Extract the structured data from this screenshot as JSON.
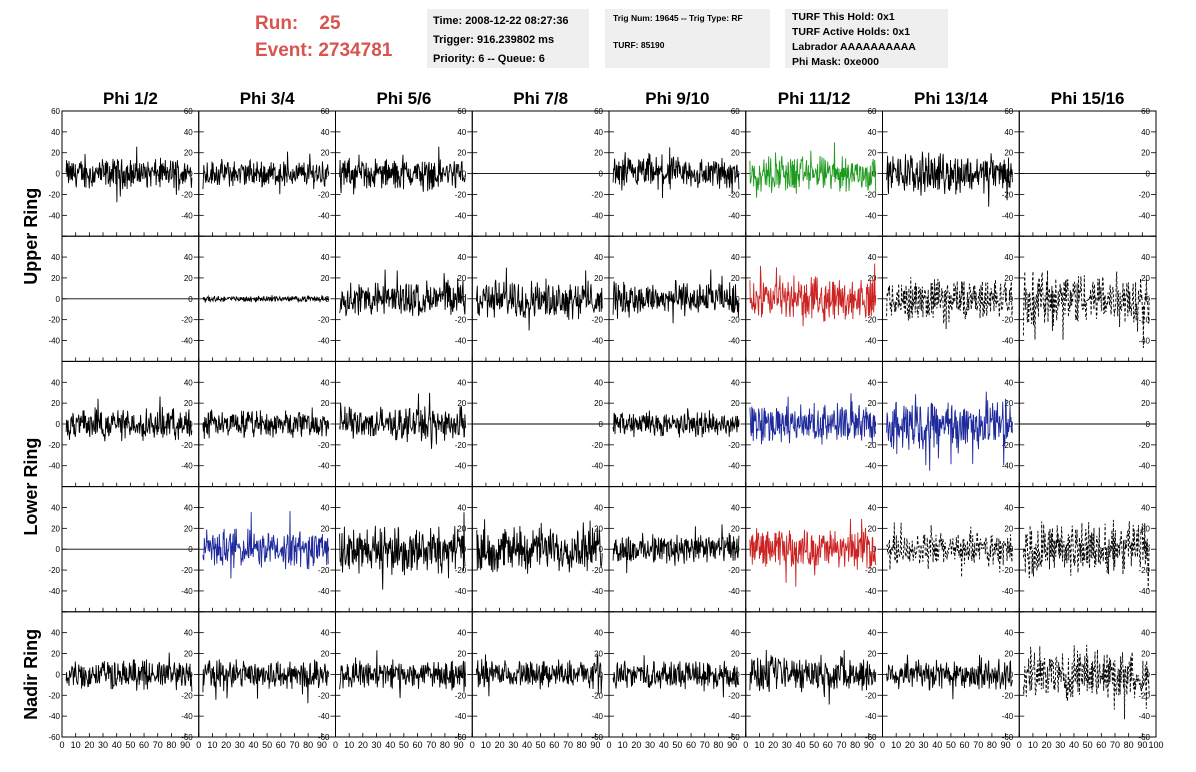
{
  "header": {
    "run_label": "Run:",
    "run_value": "25",
    "event_label": "Event:",
    "event_value": "2734781"
  },
  "info_time": {
    "line1": "Time: 2008-12-22 08:27:36",
    "line2": "Trigger: 916.239802 ms",
    "line3": "Priority: 6 -- Queue: 6"
  },
  "info_trig": {
    "line1": "Trig Num: 19645 -- Trig Type: RF",
    "line2": "TURF: 85190"
  },
  "info_turf": {
    "line1": "TURF This Hold: 0x1",
    "line2": "TURF Active Holds: 0x1",
    "line3": "Labrador AAAAAAAAAA",
    "line4": "Phi Mask: 0xe000"
  },
  "chart_data": {
    "type": "line",
    "columns": [
      "Phi 1/2",
      "Phi 3/4",
      "Phi 5/6",
      "Phi 7/8",
      "Phi 9/10",
      "Phi 11/12",
      "Phi 13/14",
      "Phi 15/16"
    ],
    "row_groups": [
      {
        "label": "Upper Ring",
        "rows": [
          0,
          1
        ]
      },
      {
        "label": "Lower Ring",
        "rows": [
          2,
          3
        ]
      },
      {
        "label": "Nadir Ring",
        "rows": [
          4
        ]
      }
    ],
    "xlim": [
      0,
      100
    ],
    "ylim": [
      -60,
      60
    ],
    "x_ticks": [
      "0",
      "10",
      "20",
      "30",
      "40",
      "50",
      "60",
      "70",
      "80",
      "90",
      "100"
    ],
    "y_ticks": [
      "60",
      "40",
      "20",
      "0",
      "-20",
      "-40",
      "-60"
    ],
    "colors": {
      "normal": "#000000",
      "green": "#1e9a1e",
      "red": "#cc2222",
      "blue": "#1e2a9c"
    },
    "panels": [
      [
        {
          "amp": 11,
          "color": "normal"
        },
        {
          "amp": 10,
          "color": "normal"
        },
        {
          "amp": 11,
          "color": "normal"
        },
        {
          "amp": 0,
          "color": "normal"
        },
        {
          "amp": 12,
          "color": "normal"
        },
        {
          "amp": 13,
          "color": "green"
        },
        {
          "amp": 14,
          "color": "normal"
        },
        {
          "amp": 0,
          "color": "normal"
        }
      ],
      [
        {
          "amp": 0,
          "color": "normal"
        },
        {
          "amp": 2,
          "color": "normal"
        },
        {
          "amp": 13,
          "color": "normal"
        },
        {
          "amp": 14,
          "color": "normal"
        },
        {
          "amp": 12,
          "color": "normal"
        },
        {
          "amp": 15,
          "color": "red"
        },
        {
          "amp": 15,
          "color": "normal",
          "dashed": true
        },
        {
          "amp": 20,
          "color": "normal",
          "dashed": true
        }
      ],
      [
        {
          "amp": 11,
          "color": "normal"
        },
        {
          "amp": 10,
          "color": "normal"
        },
        {
          "amp": 12,
          "color": "normal"
        },
        {
          "amp": 0,
          "color": "normal"
        },
        {
          "amp": 9,
          "color": "normal"
        },
        {
          "amp": 14,
          "color": "blue"
        },
        {
          "amp": 18,
          "color": "blue"
        },
        {
          "amp": 0,
          "color": "normal"
        }
      ],
      [
        {
          "amp": 0,
          "color": "normal"
        },
        {
          "amp": 14,
          "color": "blue"
        },
        {
          "amp": 17,
          "color": "normal"
        },
        {
          "amp": 16,
          "color": "normal"
        },
        {
          "amp": 11,
          "color": "normal"
        },
        {
          "amp": 14,
          "color": "red"
        },
        {
          "amp": 12,
          "color": "normal",
          "dashed": true
        },
        {
          "amp": 20,
          "color": "normal",
          "dashed": true
        }
      ],
      [
        {
          "amp": 11,
          "color": "normal"
        },
        {
          "amp": 11,
          "color": "normal"
        },
        {
          "amp": 10,
          "color": "normal"
        },
        {
          "amp": 10,
          "color": "normal"
        },
        {
          "amp": 10,
          "color": "normal"
        },
        {
          "amp": 13,
          "color": "normal"
        },
        {
          "amp": 11,
          "color": "normal"
        },
        {
          "amp": 18,
          "color": "normal",
          "dashed": true
        }
      ]
    ]
  }
}
